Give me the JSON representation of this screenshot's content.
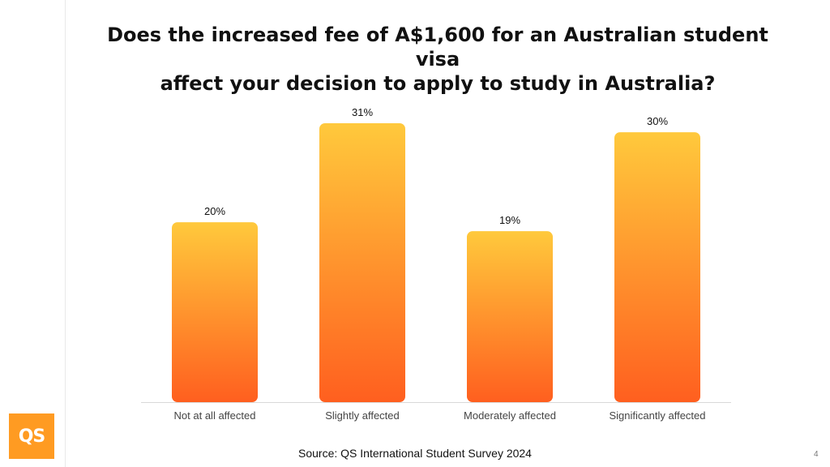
{
  "slide": {
    "title_line1": "Does the increased fee of A$1,600 for an Australian student visa",
    "title_line2": "affect your decision to apply to study in Australia?",
    "source": "Source: QS International Student Survey 2024",
    "page_number": "4",
    "logo_text": "QS"
  },
  "colors": {
    "bar_top": "#ffc93c",
    "bar_bottom": "#ff5f1f",
    "baseline": "#d9d9d9",
    "logo": "#ff9b22"
  },
  "chart_data": {
    "type": "bar",
    "title": "Does the increased fee of A$1,600 for an Australian student visa affect your decision to apply to study in Australia?",
    "categories": [
      "Not at all affected",
      "Slightly affected",
      "Moderately affected",
      "Significantly affected"
    ],
    "values": [
      20,
      31,
      19,
      30
    ],
    "value_labels": [
      "20%",
      "31%",
      "19%",
      "30%"
    ],
    "unit": "%",
    "xlabel": "",
    "ylabel": "",
    "ylim": [
      0,
      31
    ],
    "grid": false,
    "legend": "none"
  }
}
